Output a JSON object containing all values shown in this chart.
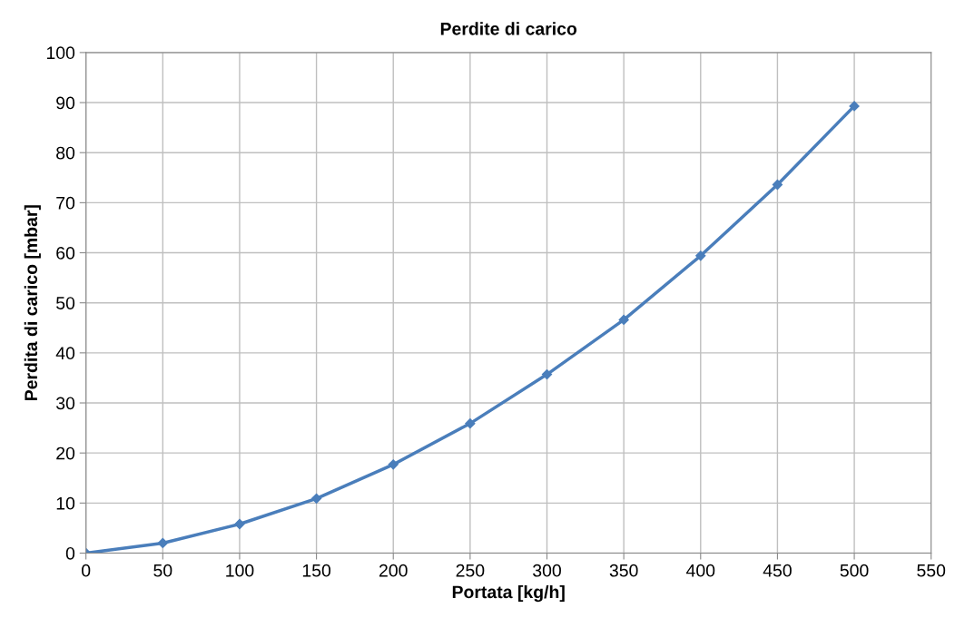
{
  "chart_data": {
    "type": "line",
    "title": "Perdite di carico",
    "xlabel": "Portata [kg/h]",
    "ylabel": "Perdita di carico [mbar]",
    "x": [
      0,
      50,
      100,
      150,
      200,
      250,
      300,
      350,
      400,
      450,
      500
    ],
    "series": [
      {
        "color": "#4a7ebb",
        "values": [
          0,
          2.0,
          5.8,
          10.9,
          17.7,
          25.9,
          35.7,
          46.6,
          59.4,
          73.6,
          89.3
        ]
      }
    ],
    "xlim": [
      0,
      550
    ],
    "xticks": [
      0,
      50,
      100,
      150,
      200,
      250,
      300,
      350,
      400,
      450,
      500,
      550
    ],
    "ylim": [
      0,
      100
    ],
    "yticks": [
      0,
      10,
      20,
      30,
      40,
      50,
      60,
      70,
      80,
      90,
      100
    ],
    "grid": true,
    "marker": "diamond",
    "line_style": "solid"
  }
}
